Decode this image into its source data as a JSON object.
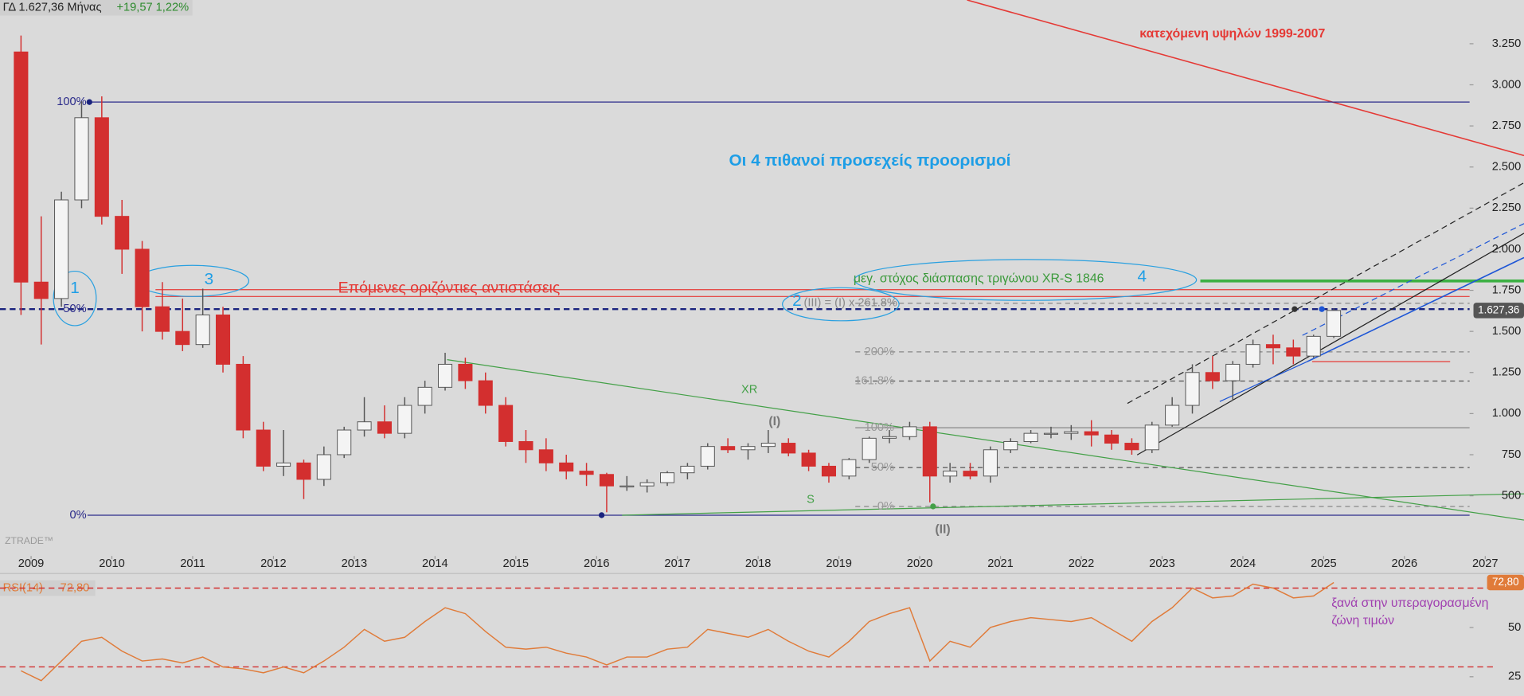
{
  "header": {
    "symbol": "ΓΔ 1.627,36 Μήνας",
    "change": "+19,57 1,22%"
  },
  "chart_data": {
    "type": "candlestick",
    "x": [
      2008.75,
      2009.0,
      2009.25,
      2009.5,
      2009.75,
      2010.0,
      2010.25,
      2010.5,
      2010.75,
      2011.0,
      2011.25,
      2011.5,
      2011.75,
      2012.0,
      2012.25,
      2012.5,
      2012.75,
      2013.0,
      2013.25,
      2013.5,
      2013.75,
      2014.0,
      2014.25,
      2014.5,
      2014.75,
      2015.0,
      2015.25,
      2015.5,
      2015.75,
      2016.0,
      2016.25,
      2016.5,
      2016.75,
      2017.0,
      2017.25,
      2017.5,
      2017.75,
      2018.0,
      2018.25,
      2018.5,
      2018.75,
      2019.0,
      2019.25,
      2019.5,
      2019.75,
      2020.0,
      2020.25,
      2020.5,
      2020.75,
      2021.0,
      2021.25,
      2021.5,
      2021.75,
      2022.0,
      2022.25,
      2022.5,
      2022.75,
      2023.0,
      2023.25,
      2023.5,
      2023.75,
      2024.0,
      2024.25,
      2024.5,
      2024.75,
      2025.0
    ],
    "open": [
      3200,
      1800,
      1700,
      2300,
      2800,
      2200,
      2000,
      1650,
      1500,
      1420,
      1600,
      1300,
      900,
      680,
      700,
      600,
      750,
      900,
      950,
      880,
      1050,
      1160,
      1300,
      1200,
      1050,
      830,
      780,
      700,
      650,
      630,
      560,
      560,
      580,
      640,
      680,
      800,
      780,
      800,
      820,
      760,
      680,
      620,
      720,
      850,
      860,
      920,
      620,
      650,
      620,
      780,
      830,
      880,
      880,
      890,
      870,
      820,
      780,
      930,
      1050,
      1250,
      1200,
      1300,
      1420,
      1400,
      1350,
      1470
    ],
    "high": [
      3300,
      2200,
      2350,
      2900,
      2930,
      2300,
      2050,
      1800,
      1700,
      1760,
      1650,
      1350,
      950,
      900,
      720,
      800,
      920,
      1100,
      1050,
      1100,
      1200,
      1370,
      1340,
      1250,
      1100,
      900,
      850,
      750,
      700,
      640,
      620,
      600,
      650,
      700,
      820,
      850,
      820,
      900,
      850,
      780,
      700,
      730,
      860,
      900,
      950,
      950,
      700,
      700,
      800,
      850,
      900,
      920,
      930,
      960,
      900,
      850,
      950,
      1100,
      1300,
      1350,
      1320,
      1450,
      1480,
      1450,
      1480,
      1640
    ],
    "low": [
      1600,
      1420,
      1650,
      2250,
      2150,
      1850,
      1500,
      1450,
      1380,
      1400,
      1250,
      850,
      650,
      620,
      480,
      560,
      730,
      860,
      850,
      850,
      1000,
      1140,
      1150,
      1000,
      800,
      700,
      650,
      600,
      560,
      400,
      530,
      520,
      560,
      600,
      660,
      760,
      720,
      760,
      740,
      650,
      580,
      600,
      700,
      820,
      840,
      460,
      580,
      600,
      580,
      760,
      820,
      850,
      840,
      800,
      780,
      750,
      760,
      920,
      1000,
      1150,
      1080,
      1280,
      1300,
      1300,
      1340,
      1460
    ],
    "close": [
      1800,
      1700,
      2300,
      2800,
      2200,
      2000,
      1650,
      1500,
      1420,
      1600,
      1300,
      900,
      680,
      700,
      600,
      750,
      900,
      950,
      880,
      1050,
      1160,
      1300,
      1200,
      1050,
      830,
      780,
      700,
      650,
      630,
      560,
      560,
      580,
      640,
      680,
      800,
      780,
      800,
      820,
      760,
      680,
      620,
      720,
      850,
      860,
      920,
      620,
      650,
      620,
      780,
      830,
      880,
      880,
      890,
      870,
      820,
      780,
      930,
      1050,
      1250,
      1200,
      1300,
      1420,
      1400,
      1350,
      1470,
      1627.36
    ],
    "up_color": "#f4f4f4",
    "down_color": "#d32f2f",
    "xlim": [
      2008.615,
      2027.48
    ],
    "xticks": [
      2009,
      2010,
      2011,
      2012,
      2013,
      2014,
      2015,
      2016,
      2017,
      2018,
      2019,
      2020,
      2021,
      2022,
      2023,
      2024,
      2025,
      2026,
      2027
    ],
    "ylim": [
      175,
      3516
    ],
    "yticks": [
      500,
      {
        "value": 750,
        "label": "750"
      },
      {
        "value": 1000,
        "label": "1.000"
      },
      {
        "value": 1250,
        "label": "1.250"
      },
      {
        "value": 1500,
        "label": "1.500"
      },
      {
        "value": 1750,
        "label": "1.750"
      },
      {
        "value": 2000,
        "label": "2.000"
      },
      {
        "value": 2250,
        "label": "2.250"
      },
      {
        "value": 2500,
        "label": "2.500"
      },
      {
        "value": 2750,
        "label": "2.750"
      },
      {
        "value": 3000,
        "label": "3.000"
      },
      {
        "value": 3250,
        "label": "3.250"
      }
    ],
    "last_price": {
      "value": 1627.36,
      "label": "1.627,36"
    }
  },
  "rsi": {
    "type": "line",
    "name": "RSI(14)",
    "color": "#e07b39",
    "values": [
      28,
      23,
      33,
      43,
      45,
      38,
      33,
      34,
      32,
      35,
      30,
      29,
      27,
      30,
      27,
      33,
      40,
      49,
      43,
      45,
      53,
      60,
      57,
      48,
      40,
      39,
      40,
      37,
      35,
      31,
      35,
      35,
      39,
      40,
      49,
      47,
      45,
      49,
      43,
      38,
      35,
      43,
      53,
      57,
      60,
      33,
      43,
      40,
      50,
      53,
      55,
      54,
      53,
      55,
      49,
      43,
      53,
      60,
      70,
      65,
      66,
      72,
      70,
      65,
      66,
      72.8
    ],
    "ylim": [
      17.2,
      76.4
    ],
    "yticks": [
      25,
      50
    ],
    "levels": [
      30,
      70
    ],
    "last": {
      "value": 72.8,
      "label": "72,80"
    }
  },
  "annotations": {
    "descending_highs": "κατεχόμενη υψηλών 1999-2007",
    "targets": "Οι 4 πιθανοί προσεχείς προορισμοί",
    "resistances": "Επόμενες οριζόντιες αντιστάσεις",
    "triangle_target": "μεγ. στόχος διάσπασης τριγώνου XR-S 1846",
    "n1": "1",
    "n2": "2",
    "n3": "3",
    "n4": "4",
    "xr": "XR",
    "s": "S",
    "wave1": "(I)",
    "wave2": "(II)",
    "wave3": "(III) = (I) x 261.8%",
    "brand": "ZTRADE™",
    "overbought1": "ξανά στην υπεραγορασμένη",
    "overbought2": "ζώνη τιμών"
  },
  "fib_labels": [
    "100%",
    "50%",
    "0%",
    "100%",
    "50%",
    "0%",
    "200%",
    "161.8%"
  ]
}
